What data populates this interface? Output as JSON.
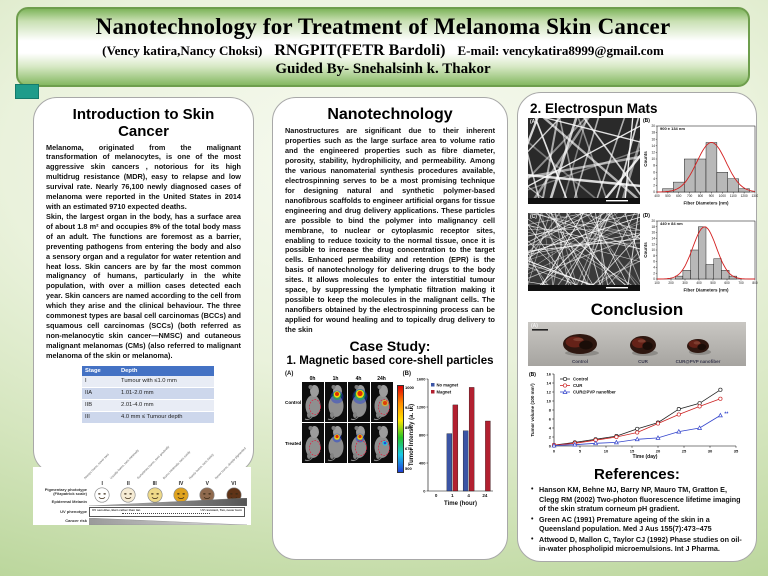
{
  "header": {
    "title": "Nanotechnology for Treatment of Melanoma Skin Cancer",
    "authors": "(Vency katira,Nancy Choksi)",
    "institution": "RNGPIT(FETR Bardoli)",
    "email_label": "E-mail:",
    "email": "vencykatira8999@gmail.com",
    "guided_by": "Guided By- Snehalsinh k. Thakor"
  },
  "left": {
    "title": "Introduction to Skin Cancer",
    "para1": "Melanoma, originated from the malignant transformation of melanocytes, is one of the most aggressive skin cancers , notorious for its high multidrug resistance (MDR), easy to relapse and low survival rate. Nearly 76,100 newly diagnosed cases of melanoma were reported in the United States in 2014 with an estimated 9710 expected deaths.",
    "para2": "Skin, the largest organ in the body, has a surface area of about 1.8 m² and occupies 8% of the total body mass of an adult. The functions are foremost as a barrier, preventing pathogens from entering the body and also a sensory organ and a regulator for water retention and heat loss. Skin cancers are by far the most common malignancy of humans, particularly in the white population, with over a million cases detected each year. Skin cancers are named according to the cell from which they arise and the clinical behaviour. The three commonest types are basal cell carcinomas (BCCs) and squamous cell carcinomas (SCCs) (both referred as non-melanocytic skin cancer—NMSC) and cutaneous malignant melanomas (CMs) (also referred to malignant melanoma of the skin or melanoma).",
    "stage_table": {
      "headers": [
        "Stage",
        "Depth"
      ],
      "rows": [
        [
          "I",
          "Tumour with ≤1.0 mm"
        ],
        [
          "IIA",
          "1.01-2.0 mm"
        ],
        [
          "IIB",
          "2.01-4.0 mm"
        ],
        [
          "III",
          "4.0 mm ≤ Tumour depth"
        ]
      ]
    },
    "phototype": {
      "row_label_phototype": "Pigmentary phototype (Fitzpatrick scale)",
      "row_label_melanin": "Epidermal Melanin",
      "row_label_uv": "UV phenotype",
      "row_label_cancer": "Cancer risk",
      "types": [
        "I",
        "II",
        "III",
        "IV",
        "V",
        "VI"
      ],
      "top_labels": [
        "Always burns, never tans",
        "Usually burns, tans minimally",
        "Sometimes burns, tans gradually",
        "Burns minimally, tans easily",
        "Rarely burns, tans darkly",
        "Never burns, deeply pigmented"
      ],
      "face_colors": [
        "#ffffff",
        "#f6ecd5",
        "#eed988",
        "#dfa31f",
        "#8f6a4e",
        "#5f3317"
      ],
      "uv_left": "UV sensitive, Burn rather than tan",
      "uv_right": "UV resistant, Tan, never burn"
    }
  },
  "middle": {
    "title": "Nanotechnology",
    "body": "Nanostructures are significant due to their inherent properties such as the large surface area to volume ratio and the engineered properties such as fibre diameter, porosity, stability, hydrophilicity, and permeability. Among the various nanomaterial synthesis procedures available, electrospinning serves to be a most promising technique for designing natural and synthetic polymer-based nanofibrous scaffolds to engineer artificial organs for tissue engineering and drug delivery applications. These particles are possible to bind the polymer into malignancy cell membrane, to nuclear or cytoplasmic receptor sites, enabling to reduce toxicity to the normal tissue, once it is possible to increase the drug concentration to the target cells. Enhanced permeability and retention (EPR) is the basis of nanotechnology for delivering drugs to the body sites. It allows molecules to enter the interstitial tumour space, by suppressing the lymphatic filtration making it possible to keep the molecules in the malignant cells. The nanofibers obtained by the electrospinning process can be applied for wound healing and to topically drug delivery to the skin",
    "case_study_title": "Case Study:",
    "case_study_item": "1. Magnetic based core-shell particles",
    "figure": {
      "panel_a_label": "(A)",
      "panel_b_label": "(B)",
      "timepoints": [
        "0h",
        "1h",
        "4h",
        "24h"
      ],
      "row_labels": [
        "Control",
        "Treated"
      ],
      "colorbar_labels": [
        "1000",
        "925",
        "850",
        "675",
        "500"
      ]
    }
  },
  "right": {
    "electrospun_title": "2. Electrospun Mats",
    "sem_labels": [
      "(A)",
      "(C)"
    ],
    "hist_labels": [
      "(B)",
      "(D)"
    ],
    "conclusion_title": "Conclusion",
    "specimen_panel_label": "(A)",
    "specimen_labels": [
      "Control",
      "CUR",
      "CUR@PVP nanofiber"
    ],
    "tumor_chart_label": "(B)",
    "references_title": "References:",
    "references": [
      "Hanson KM, Behne MJ, Barry NP, Mauro TM, Gratton E, Clegg RM (2002) Two-photon fluorescence lifetime imaging of the skin stratum corneum pH gradient.",
      "Green AC (1991) Premature ageing of the skin in a Queensland population. Med J Aus 155(7):473–475",
      "Attwood D, Mallon C, Taylor CJ (1992) Phase studies on oil-in-water phospholipid microemulsions. Int J Pharma."
    ]
  },
  "chart_data": [
    {
      "id": "tumor-intensity",
      "type": "bar",
      "categories": [
        "0",
        "1",
        "4",
        "24"
      ],
      "series": [
        {
          "name": "No magnet",
          "color": "#3b55a5",
          "values": [
            0,
            820,
            860,
            0
          ]
        },
        {
          "name": "Magnet",
          "color": "#b22030",
          "values": [
            0,
            1230,
            1480,
            1000
          ]
        }
      ],
      "xlabel": "Time (hour)",
      "ylabel": "Tumor Intensity (a. u.)",
      "ylim": [
        0,
        1600
      ],
      "yticks": [
        0,
        400,
        800,
        1200,
        1600
      ],
      "legend_position": "top-left"
    },
    {
      "id": "fiber-hist-b",
      "type": "bar",
      "annotation": "900 ± 134 nm",
      "bin_start": 450,
      "bin_width": 100,
      "categories": [
        500,
        600,
        700,
        800,
        900,
        1000,
        1100,
        1200
      ],
      "values": [
        1,
        3,
        10,
        10,
        15,
        6,
        4,
        1
      ],
      "fit": {
        "mean": 900,
        "sd": 134,
        "amp": 15
      },
      "xlabel": "Fiber Diameters (nm)",
      "ylabel": "Counts",
      "ylim": [
        0,
        20
      ],
      "xticks": [
        400,
        500,
        600,
        700,
        800,
        900,
        1000,
        1100,
        1200,
        1300
      ]
    },
    {
      "id": "fiber-hist-d",
      "type": "bar",
      "annotation": "440 ± 84 nm",
      "bin_start": 230,
      "bin_width": 55,
      "categories": [
        257,
        312,
        367,
        422,
        477,
        532,
        587,
        642
      ],
      "values": [
        1,
        3,
        10,
        18,
        5,
        7,
        3,
        1
      ],
      "fit": {
        "mean": 440,
        "sd": 84,
        "amp": 18
      },
      "xlabel": "Fiber Diameters (nm)",
      "ylabel": "Counts",
      "ylim": [
        0,
        20
      ],
      "xticks": [
        100,
        200,
        300,
        400,
        500,
        600,
        700,
        800
      ]
    },
    {
      "id": "tumor-volume",
      "type": "line",
      "x": [
        0,
        4,
        8,
        12,
        16,
        20,
        24,
        28,
        32
      ],
      "series": [
        {
          "name": "Control",
          "color": "#222222",
          "marker": "circle",
          "values": [
            0.2,
            0.8,
            1.5,
            2.2,
            3.8,
            5.2,
            8.2,
            9.5,
            12.5
          ]
        },
        {
          "name": "CUR",
          "color": "#cc2222",
          "marker": "circle",
          "values": [
            0.2,
            0.6,
            1.3,
            2.0,
            3.0,
            5.0,
            7.0,
            8.8,
            10.5
          ]
        },
        {
          "name": "CUR@PVP nanofiber",
          "color": "#3344cc",
          "marker": "triangle",
          "values": [
            0.1,
            0.3,
            0.6,
            0.8,
            1.5,
            1.8,
            3.2,
            4.0,
            6.8
          ]
        }
      ],
      "annotation": "**",
      "xlabel": "Time (day)",
      "ylabel": "Tumor volume (100 mm³)",
      "xlim": [
        0,
        35
      ],
      "ylim": [
        0,
        16
      ],
      "xticks": [
        0,
        5,
        10,
        15,
        20,
        25,
        30,
        35
      ],
      "yticks": [
        0,
        2,
        4,
        6,
        8,
        10,
        12,
        14,
        16
      ],
      "legend_position": "top-left"
    }
  ]
}
